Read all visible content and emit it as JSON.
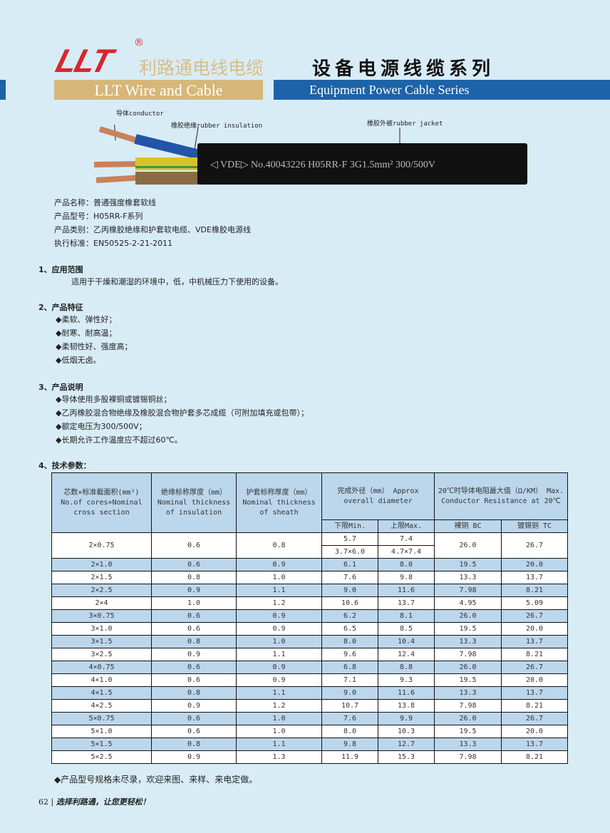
{
  "header": {
    "logo": "LLT",
    "registered": "®",
    "brand_cn": "利路通电线电缆",
    "series_cn": "设备电源线缆系列",
    "brand_en": "LLT Wire and Cable",
    "series_en": "Equipment Power Cable Series",
    "accent_blue": "#1d63a8",
    "gold": "#d6b779"
  },
  "cable": {
    "label_conductor": "导体conductor",
    "label_insulation": "橡胶绝缘rubber insulation",
    "label_jacket": "橡胶外被rubber jacket",
    "print": "◁ VDE▷  No.40043226 H05RR-F 3G1.5mm² 300/500V"
  },
  "info": [
    "产品名称：普通强度橡套软线",
    "产品型号：H05RR-F系列",
    "产品类别：乙丙橡胶绝缘和护套软电缆、VDE橡胶电源线",
    "执行标准：EN50525-2-21-2011"
  ],
  "sections": [
    {
      "title": "1、应用范围",
      "items": [
        "适用于干燥和潮湿的环境中，低，中机械压力下使用的设备。"
      ]
    },
    {
      "title": "2、产品特征",
      "items": [
        "◆柔软、弹性好；",
        "◆耐寒、耐高温；",
        "◆柔韧性好、强度高；",
        "◆低烟无卤。"
      ]
    },
    {
      "title": "3、产品说明",
      "items": [
        "◆导体使用多股裸铜或镀锡铜丝；",
        "◆乙丙橡胶混合物绝缘及橡胶混合物护套多芯成缆（可附加填充或包带）；",
        "◆额定电压为300/500V；",
        "◆长期允许工作温度应不超过60℃。"
      ]
    },
    {
      "title": "4、技术参数：",
      "items": []
    }
  ],
  "table": {
    "headers": [
      "芯数×标准截面积(mm²) No.of cores×Nominal cross section",
      "绝缘标称厚度（mm） Nominal thickness of insulation",
      "护套标称厚度（mm） Nominal thickness of sheath",
      "完成外径（mm） Approx overall diameter",
      "20℃时导体电阻最大值（Ω/KM） Max. Conductor Resistance at 20℃"
    ],
    "subheaders": [
      "下限Min.",
      "上限Max.",
      "裸铜 BC",
      "镀锡铜 TC"
    ],
    "first_row": {
      "size": "2×0.75",
      "ins": "0.6",
      "sheath": "0.8",
      "min": [
        "5.7",
        "3.7×6.0"
      ],
      "max": [
        "7.4",
        "4.7×7.4"
      ],
      "bc": "26.0",
      "tc": "26.7"
    },
    "rows": [
      [
        "2×1.0",
        "0.6",
        "0.9",
        "6.1",
        "8.0",
        "19.5",
        "20.0"
      ],
      [
        "2×1.5",
        "0.8",
        "1.0",
        "7.6",
        "9.8",
        "13.3",
        "13.7"
      ],
      [
        "2×2.5",
        "0.9",
        "1.1",
        "9.0",
        "11.6",
        "7.98",
        "8.21"
      ],
      [
        "2×4",
        "1.0",
        "1.2",
        "10.6",
        "13.7",
        "4.95",
        "5.09"
      ],
      [
        "3×0.75",
        "0.6",
        "0.9",
        "6.2",
        "8.1",
        "26.0",
        "26.7"
      ],
      [
        "3×1.0",
        "0.6",
        "0.9",
        "6.5",
        "8.5",
        "19.5",
        "20.0"
      ],
      [
        "3×1.5",
        "0.8",
        "1.0",
        "8.0",
        "10.4",
        "13.3",
        "13.7"
      ],
      [
        "3×2.5",
        "0.9",
        "1.1",
        "9.6",
        "12.4",
        "7.98",
        "8.21"
      ],
      [
        "4×0.75",
        "0.6",
        "0.9",
        "6.8",
        "8.8",
        "26.0",
        "26.7"
      ],
      [
        "4×1.0",
        "0.6",
        "0.9",
        "7.1",
        "9.3",
        "19.5",
        "20.0"
      ],
      [
        "4×1.5",
        "0.8",
        "1.1",
        "9.0",
        "11.6",
        "13.3",
        "13.7"
      ],
      [
        "4×2.5",
        "0.9",
        "1.2",
        "10.7",
        "13.8",
        "7.98",
        "8.21"
      ],
      [
        "5×0.75",
        "0.6",
        "1.0",
        "7.6",
        "9.9",
        "26.0",
        "26.7"
      ],
      [
        "5×1.0",
        "0.6",
        "1.0",
        "8.0",
        "10.3",
        "19.5",
        "20.0"
      ],
      [
        "5×1.5",
        "0.8",
        "1.1",
        "9.8",
        "12.7",
        "13.3",
        "13.7"
      ],
      [
        "5×2.5",
        "0.9",
        "1.3",
        "11.9",
        "15.3",
        "7.98",
        "8.21"
      ]
    ]
  },
  "note": "◆产品型号规格未尽录，欢迎来图、来样、来电定做。",
  "footer": {
    "page": "62",
    "slogan": "选择利路通，让您更轻松！"
  }
}
